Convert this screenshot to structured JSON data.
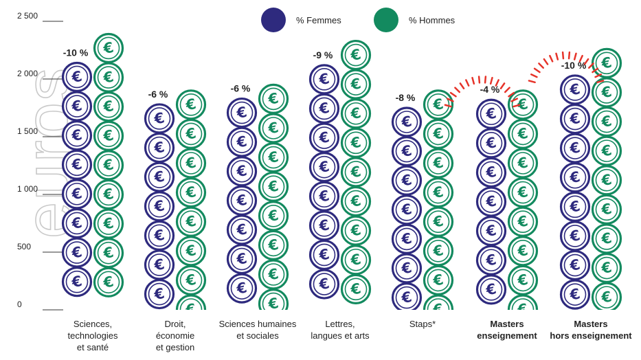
{
  "chart_data": {
    "type": "bar",
    "ylabel": "euros",
    "ylim": [
      0,
      2500
    ],
    "yticks": [
      {
        "value": 0,
        "label": "0"
      },
      {
        "value": 500,
        "label": "500"
      },
      {
        "value": 1000,
        "label": "1 000"
      },
      {
        "value": 1500,
        "label": "1 500"
      },
      {
        "value": 2000,
        "label": "2 000"
      },
      {
        "value": 2500,
        "label": "2 500"
      }
    ],
    "categories": [
      {
        "lines": [
          "Sciences,",
          "technologies",
          "et santé"
        ],
        "bold": false
      },
      {
        "lines": [
          "Droit,",
          "économie",
          "et gestion"
        ],
        "bold": false
      },
      {
        "lines": [
          "Sciences humaines",
          "et sociales"
        ],
        "bold": false
      },
      {
        "lines": [
          "Lettres,",
          "langues et arts"
        ],
        "bold": false
      },
      {
        "lines": [
          "Staps*"
        ],
        "bold": false
      },
      {
        "lines": [
          "Masters",
          "enseignement"
        ],
        "bold": true
      },
      {
        "lines": [
          "Masters",
          "hors enseignement"
        ],
        "bold": true
      }
    ],
    "series": [
      {
        "name": "% Femmes",
        "color": "#2e2a7e",
        "values": [
          2140,
          1780,
          1830,
          2120,
          1750,
          1820,
          2030
        ]
      },
      {
        "name": "% Hommes",
        "color": "#138a5f",
        "values": [
          2390,
          1900,
          1950,
          2330,
          1900,
          1900,
          2260
        ]
      }
    ],
    "gap_labels": [
      "-10 %",
      "-6 %",
      "-6 %",
      "-9 %",
      "-8 %",
      "-4 %",
      "-10 %"
    ],
    "highlighted": [
      false,
      false,
      false,
      false,
      false,
      true,
      true
    ],
    "highlight_color": "#e63329",
    "grid": false,
    "legend_position": "top-center"
  }
}
